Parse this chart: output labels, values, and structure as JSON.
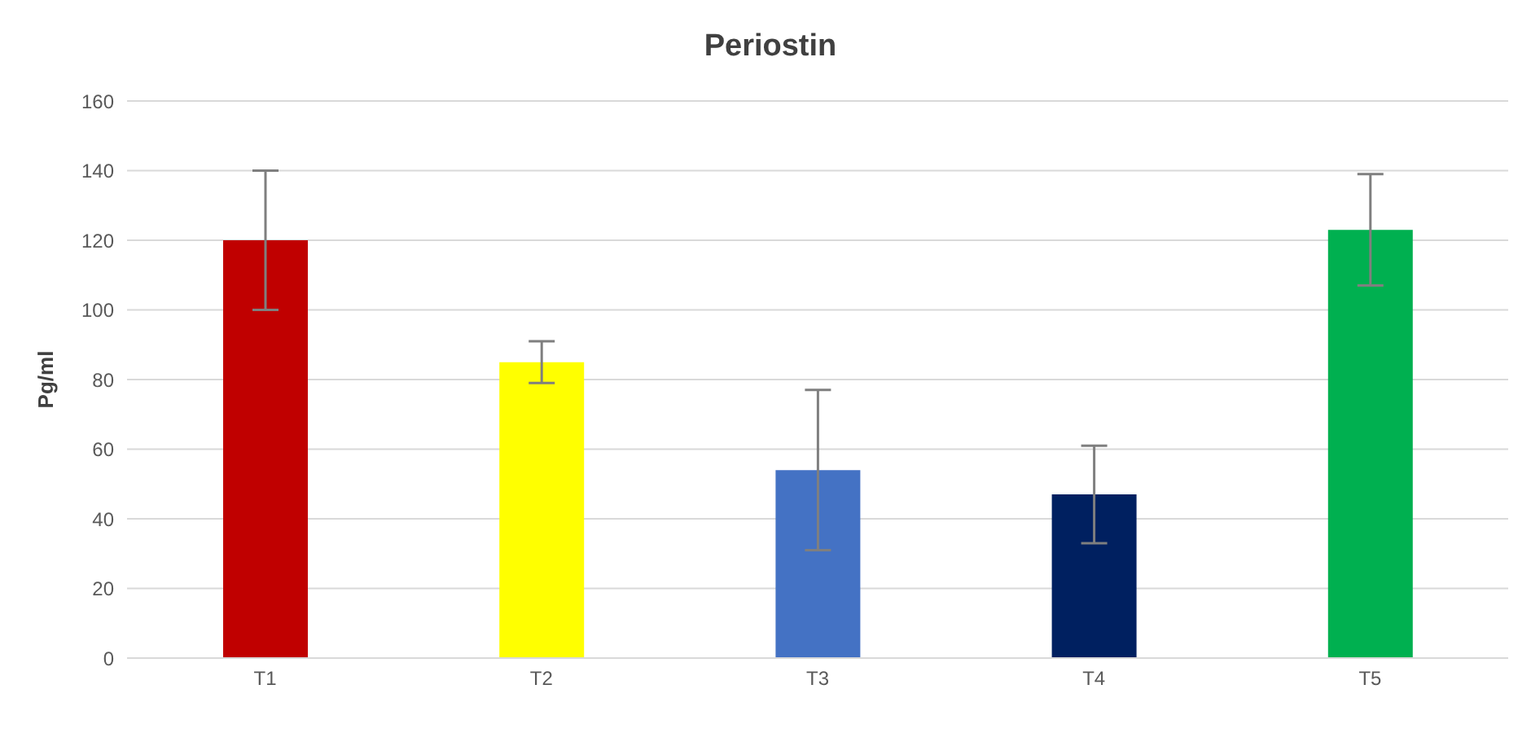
{
  "chart_data": {
    "type": "bar",
    "title": "Periostin",
    "ylabel": "Pg/ml",
    "categories": [
      "T1",
      "T2",
      "T3",
      "T4",
      "T5"
    ],
    "values": [
      120,
      85,
      54,
      47,
      123
    ],
    "errors": [
      20,
      6,
      23,
      14,
      16
    ],
    "colors": [
      "#c00000",
      "#ffff00",
      "#4472c4",
      "#002060",
      "#00b050"
    ],
    "ylim": [
      0,
      160
    ],
    "yticks": [
      0,
      20,
      40,
      60,
      80,
      100,
      120,
      140,
      160
    ],
    "grid": "y"
  }
}
